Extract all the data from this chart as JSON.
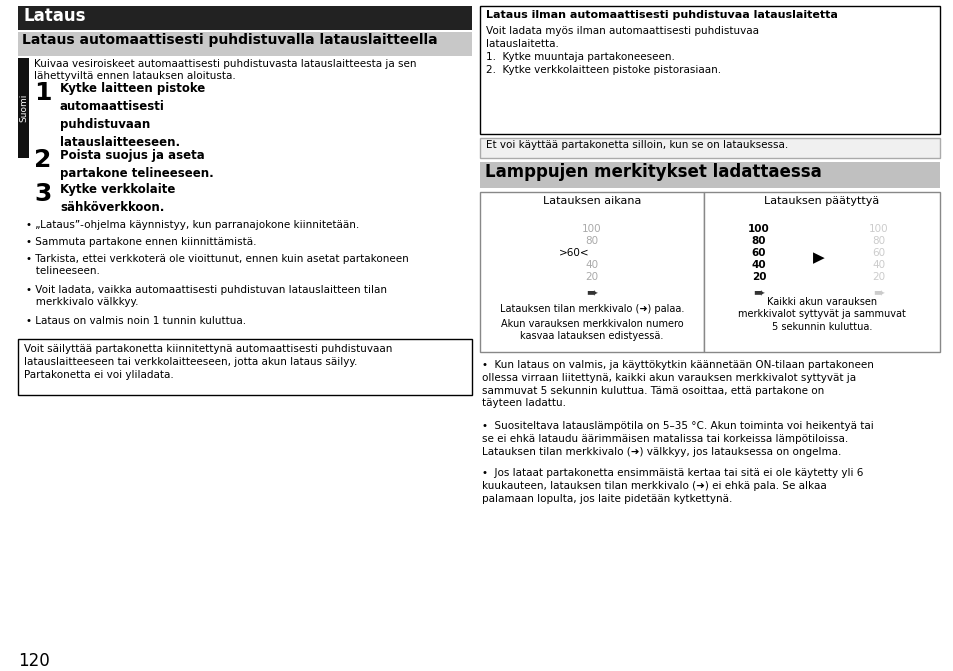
{
  "bg": "#ffffff",
  "title1_text": "Lataus",
  "title1_bg": "#222222",
  "title1_fg": "#ffffff",
  "title2_text": "Lataus automaattisesti puhdistuvalla latauslaitteella",
  "title2_bg": "#c8c8c8",
  "title2_fg": "#000000",
  "suomi": "Suomi",
  "intro": "Kuivaa vesiroiskeet automaattisesti puhdistuvasta latauslaitteesta ja sen\nlähettyviltä ennen latauksen aloitusta.",
  "step1_num": "1",
  "step1_txt": "Kytke laitteen pistoke\nautomaattisesti\npuhdistuvaan\nlatauslaitteeseen.",
  "step2_num": "2",
  "step2_txt": "Poista suojus ja aseta\npartakone telineeseen.",
  "step3_num": "3",
  "step3_txt": "Kytke verkkolaite\nsähköverkkoon.",
  "b1": "„Lataus”-ohjelma käynnistyy, kun parranajokone kiinnitetään.",
  "b2": "Sammuta partakone ennen kiinnittämistä.",
  "b3": "Tarkista, ettei verkkoterä ole vioittunut, ennen kuin asetat partakoneen\n   telineeseen.",
  "b4": "Voit ladata, vaikka automaattisesti puhdistuvan latauslaitteen tilan\n   merkkivalo välkkyy.",
  "b5": "Lataus on valmis noin 1 tunnin kuluttua.",
  "note": "Voit säilyttää partakonetta kiinnitettynä automaattisesti puhdistuvaan\nlatauslaitteeseen tai verkkolaitteeseen, jotta akun lataus säilyy.\nPartakonetta ei voi yliladata.",
  "page": "120",
  "rbox_title": "Lataus ilman automaattisesti puhdistuvaa latauslaitetta",
  "rbox_body1": "Voit ladata myös ilman automaattisesti puhdistuvaa",
  "rbox_body2": "latauslaitetta.",
  "rbox_body3": "1.  Kytke muuntaja partakoneeseen.",
  "rbox_body4": "2.  Kytke verkkolaitteen pistoke pistorasiaan.",
  "caution": "Et voi käyttää partakonetta silloin, kun se on latauksessa.",
  "sec2": "Lamppujen merkitykset ladattaessa",
  "sec2_bg": "#c0c0c0",
  "col1_hdr": "Latauksen aikana",
  "col2_hdr": "Latauksen päätyttyä",
  "levels": [
    "100",
    "80",
    "60",
    "40",
    "20"
  ],
  "c1note1": "Latauksen tilan merkkivalo (➜) palaa.",
  "c1note2": "Akun varauksen merkkivalon numero\nkasvaa latauksen edistyessä.",
  "c2note": "Kaikki akun varauksen\nmerkkivalot syttyvät ja sammuvat\n5 sekunnin kuluttua.",
  "rb1": "Kun lataus on valmis, ja käyttökytkin käännetään ON-tilaan partakoneen\nollessa virraan liitettynä, kaikki akun varauksen merkkivalot syttyvät ja\nsammuvat 5 sekunnin kuluttua. Tämä osoittaa, että partakone on\ntäyteen ladattu.",
  "rb2": "Suositeltava latauslämpötila on 5–35 °C. Akun toiminta voi heikentyä tai\nse ei ehkä lataudu äärimmäisen matalissa tai korkeissa lämpötiloissa.\nLatauksen tilan merkkivalo (➜) välkkyy, jos latauksessa on ongelma.",
  "rb3": "Jos lataat partakonetta ensimmäistä kertaa tai sitä ei ole käytetty yli 6\nkuukauteen, latauksen tilan merkkivalo (➜) ei ehkä pala. Se alkaa\npalamaan lopulta, jos laite pidetään kytkettynä."
}
